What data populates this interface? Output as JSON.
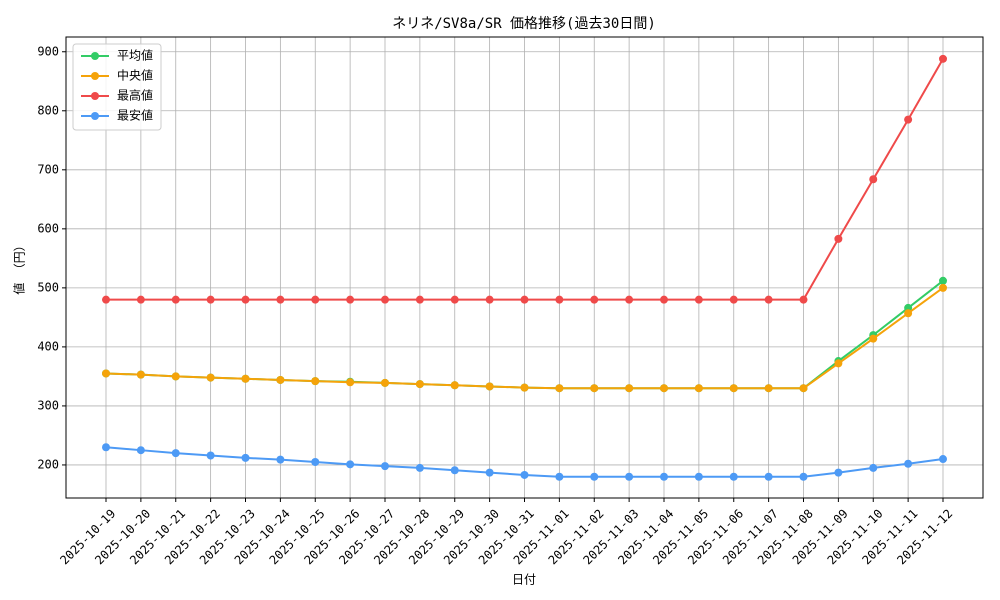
{
  "chart_data": {
    "type": "line",
    "title": "ネリネ/SV8a/SR 価格推移(過去30日間)",
    "x_label": "日付",
    "y_label": "値 （円）",
    "categories": [
      "2025-10-19",
      "2025-10-20",
      "2025-10-21",
      "2025-10-22",
      "2025-10-23",
      "2025-10-24",
      "2025-10-25",
      "2025-10-26",
      "2025-10-27",
      "2025-10-28",
      "2025-10-29",
      "2025-10-30",
      "2025-10-31",
      "2025-11-01",
      "2025-11-02",
      "2025-11-03",
      "2025-11-04",
      "2025-11-05",
      "2025-11-06",
      "2025-11-07",
      "2025-11-08",
      "2025-11-09",
      "2025-11-10",
      "2025-11-11",
      "2025-11-12"
    ],
    "series": [
      {
        "name": "平均値",
        "color": "#33cc66",
        "values": [
          355,
          353,
          350,
          348,
          346,
          344,
          342,
          341,
          339,
          337,
          335,
          333,
          331,
          330,
          330,
          330,
          330,
          330,
          330,
          330,
          330,
          376,
          420,
          466,
          512
        ]
      },
      {
        "name": "中央値",
        "color": "#f5a30a",
        "values": [
          355,
          353,
          350,
          348,
          346,
          344,
          342,
          340,
          339,
          337,
          335,
          333,
          331,
          330,
          330,
          330,
          330,
          330,
          330,
          330,
          330,
          372,
          414,
          457,
          500
        ]
      },
      {
        "name": "最高値",
        "color": "#ef4a4a",
        "values": [
          480,
          480,
          480,
          480,
          480,
          480,
          480,
          480,
          480,
          480,
          480,
          480,
          480,
          480,
          480,
          480,
          480,
          480,
          480,
          480,
          480,
          583,
          684,
          785,
          888
        ]
      },
      {
        "name": "最安値",
        "color": "#4d9af5",
        "values": [
          230,
          225,
          220,
          216,
          212,
          209,
          205,
          201,
          198,
          195,
          191,
          187,
          183,
          180,
          180,
          180,
          180,
          180,
          180,
          180,
          180,
          187,
          195,
          202,
          210
        ]
      }
    ],
    "ylim": [
      144,
      925
    ],
    "yticks": [
      200,
      300,
      400,
      500,
      600,
      700,
      800,
      900
    ],
    "grid": true,
    "legend": "upper-left"
  }
}
